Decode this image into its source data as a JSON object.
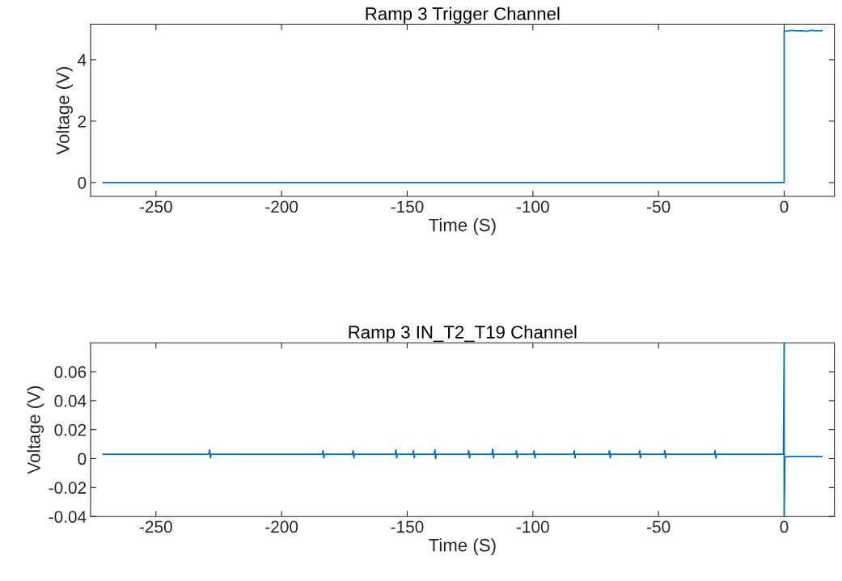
{
  "chart_data": [
    {
      "type": "line",
      "title": "Ramp 3 Trigger Channel",
      "xlabel": "Time (S)",
      "ylabel": "Voltage (V)",
      "xlim": [
        -276,
        20
      ],
      "xticks": [
        -250,
        -200,
        -150,
        -100,
        -50,
        0
      ],
      "ylim": [
        -0.45,
        5.15
      ],
      "yticks": [
        0,
        2,
        4
      ],
      "grid": false,
      "series": [
        {
          "color": "#0072bd",
          "x": [
            -271,
            0,
            0,
            1,
            3,
            5,
            7,
            9,
            11,
            13,
            15
          ],
          "values": [
            0,
            0,
            4.95,
            4.93,
            4.96,
            4.94,
            4.95,
            4.93,
            4.96,
            4.94,
            4.95
          ]
        }
      ]
    },
    {
      "type": "line",
      "title": "Ramp 3 IN_T2_T19 Channel",
      "xlabel": "Time (S)",
      "ylabel": "Voltage (V)",
      "xlim": [
        -276,
        20
      ],
      "xticks": [
        -250,
        -200,
        -150,
        -100,
        -50,
        0
      ],
      "ylim": [
        -0.04,
        0.08
      ],
      "yticks": [
        -0.04,
        -0.02,
        0,
        0.02,
        0.04,
        0.06
      ],
      "grid": false,
      "series": [
        {
          "color": "#0072bd",
          "x": [
            -271,
            -229,
            -228.6,
            -228.3,
            -228,
            -183.8,
            -183.5,
            -183.2,
            -183,
            -171.8,
            -171.5,
            -171.2,
            -171,
            -154.8,
            -154.5,
            -154.2,
            -154,
            -147.8,
            -147.5,
            -147.2,
            -147,
            -139.3,
            -139,
            -138.7,
            -138.5,
            -125.8,
            -125.5,
            -125.2,
            -125,
            -116.3,
            -116,
            -115.7,
            -115.5,
            -106.8,
            -106.5,
            -106.2,
            -106,
            -99.8,
            -99.5,
            -99.2,
            -99,
            -83.8,
            -83.5,
            -83.2,
            -83,
            -69.8,
            -69.5,
            -69.2,
            -69,
            -57.8,
            -57.5,
            -57.2,
            -57,
            -47.8,
            -47.5,
            -47.2,
            -47,
            -27.8,
            -27.5,
            -27.2,
            -27,
            -0.3,
            0,
            0,
            0.3,
            1,
            5,
            10,
            15
          ],
          "values": [
            0.003,
            0.003,
            0.006,
            0.0005,
            0.003,
            0.003,
            0.0055,
            0.0005,
            0.003,
            0.003,
            0.0055,
            0.0005,
            0.003,
            0.003,
            0.006,
            0.0005,
            0.003,
            0.003,
            0.0055,
            0.0005,
            0.003,
            0.003,
            0.006,
            0.0,
            0.003,
            0.003,
            0.0055,
            0.0005,
            0.003,
            0.003,
            0.0065,
            0.0005,
            0.003,
            0.003,
            0.0055,
            0.0005,
            0.003,
            0.003,
            0.0055,
            0.0005,
            0.003,
            0.003,
            0.0055,
            0.0005,
            0.003,
            0.003,
            0.0055,
            0.0005,
            0.003,
            0.003,
            0.0055,
            0.0005,
            0.003,
            0.003,
            0.0055,
            0.0005,
            0.003,
            0.003,
            0.0055,
            0.0005,
            0.003,
            0.003,
            0.08,
            -0.04,
            0.001,
            0.0015,
            0.0015,
            0.0015,
            0.0015
          ]
        }
      ]
    }
  ]
}
